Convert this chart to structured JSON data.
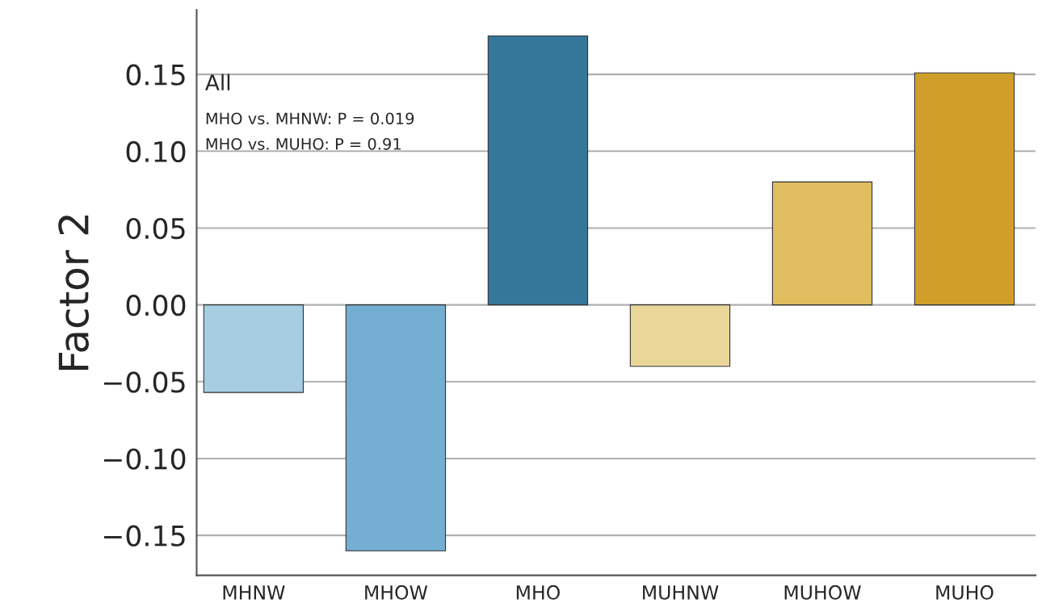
{
  "chart_data": {
    "type": "bar",
    "ylabel": "Factor 2",
    "categories": [
      "MHNW",
      "MHOW",
      "MHO",
      "MUHNW",
      "MUHOW",
      "MUHO"
    ],
    "values": [
      -0.057,
      -0.16,
      0.175,
      -0.04,
      0.08,
      0.151
    ],
    "colors": [
      "#a6cde2",
      "#74aed3",
      "#35779b",
      "#ebd69a",
      "#e0bd5e",
      "#cf9f29"
    ],
    "ylim": [
      -0.176,
      0.192
    ],
    "yticks": [
      {
        "value": -0.15,
        "label": "−0.15"
      },
      {
        "value": -0.1,
        "label": "−0.10"
      },
      {
        "value": -0.05,
        "label": "−0.05"
      },
      {
        "value": 0,
        "label": "0.00"
      },
      {
        "value": 0.05,
        "label": "0.05"
      },
      {
        "value": 0.1,
        "label": "0.10"
      },
      {
        "value": 0.15,
        "label": "0.15"
      }
    ],
    "grid": "y",
    "legend": false,
    "annotations": [
      "All",
      "MHO vs. MHNW: P = 0.019",
      "MHO vs. MUHO: P = 0.91"
    ]
  }
}
